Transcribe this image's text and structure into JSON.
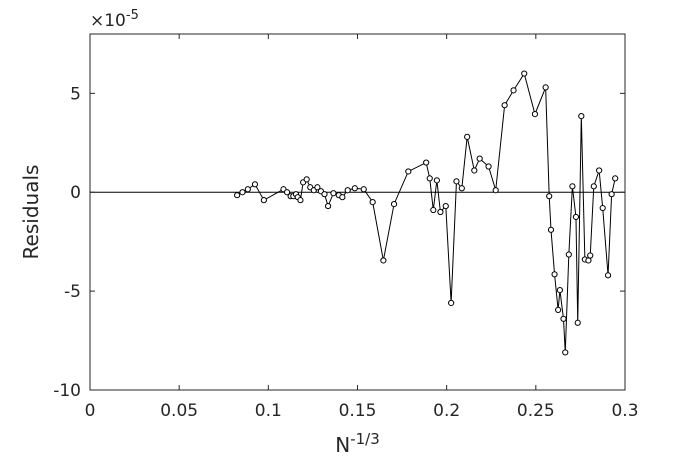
{
  "chart_data": {
    "type": "line",
    "xlabel_base": "N",
    "xlabel_sup": "-1/3",
    "ylabel": "Residuals",
    "y_multiplier_base": "×10",
    "y_multiplier_sup": "-5",
    "xlim": [
      0,
      0.3
    ],
    "ylim": [
      -10,
      8
    ],
    "x_ticks": [
      0,
      0.05,
      0.1,
      0.15,
      0.2,
      0.25,
      0.3
    ],
    "x_tick_labels": [
      "0",
      "0.05",
      "0.1",
      "0.15",
      "0.2",
      "0.25",
      "0.3"
    ],
    "y_ticks": [
      -10,
      -5,
      0,
      5
    ],
    "y_tick_labels": [
      "-10",
      "-5",
      "0",
      "5"
    ],
    "grid": false,
    "legend": "none",
    "reference_line_y": 0,
    "line_color": "#000000",
    "marker": "circle",
    "series": [
      {
        "x": [
          0.0825,
          0.0855,
          0.0885,
          0.0925,
          0.0975,
          0.1085,
          0.1105,
          0.1125,
          0.114,
          0.1155,
          0.1165,
          0.118,
          0.1195,
          0.1215,
          0.1235,
          0.1255,
          0.1275,
          0.1295,
          0.1315,
          0.1335,
          0.1365,
          0.1395,
          0.1415,
          0.1445,
          0.1485,
          0.1535,
          0.1585,
          0.1645,
          0.1705,
          0.1785,
          0.1885,
          0.1905,
          0.1925,
          0.1945,
          0.1965,
          0.1995,
          0.2025,
          0.2055,
          0.2085,
          0.2115,
          0.2155,
          0.2185,
          0.2235,
          0.2275,
          0.2325,
          0.2375,
          0.2435,
          0.2495,
          0.2555,
          0.2575,
          0.2585,
          0.2605,
          0.2625,
          0.2635,
          0.2655,
          0.2665,
          0.2685,
          0.2705,
          0.2725,
          0.2735,
          0.2755,
          0.2775,
          0.2795,
          0.2805,
          0.2825,
          0.2855,
          0.2875,
          0.2905,
          0.2925,
          0.2945
        ],
        "y": [
          -0.15,
          0.0,
          0.15,
          0.4,
          -0.4,
          0.15,
          0.0,
          -0.2,
          -0.2,
          -0.1,
          -0.25,
          -0.4,
          0.5,
          0.65,
          0.25,
          0.1,
          0.25,
          0.05,
          -0.1,
          -0.7,
          -0.05,
          -0.15,
          -0.25,
          0.1,
          0.2,
          0.15,
          -0.5,
          -3.45,
          -0.6,
          1.05,
          1.5,
          0.7,
          -0.9,
          0.6,
          -1.0,
          -0.7,
          -5.6,
          0.55,
          0.2,
          2.8,
          1.1,
          1.7,
          1.3,
          0.1,
          4.4,
          5.15,
          6.0,
          3.95,
          5.3,
          -0.2,
          -1.9,
          -4.15,
          -5.95,
          -4.95,
          -6.4,
          -8.1,
          -3.15,
          0.3,
          -1.25,
          -6.6,
          3.85,
          -3.4,
          -3.45,
          -3.2,
          0.3,
          1.1,
          -0.8,
          -4.2,
          -0.1,
          0.7
        ]
      }
    ]
  }
}
